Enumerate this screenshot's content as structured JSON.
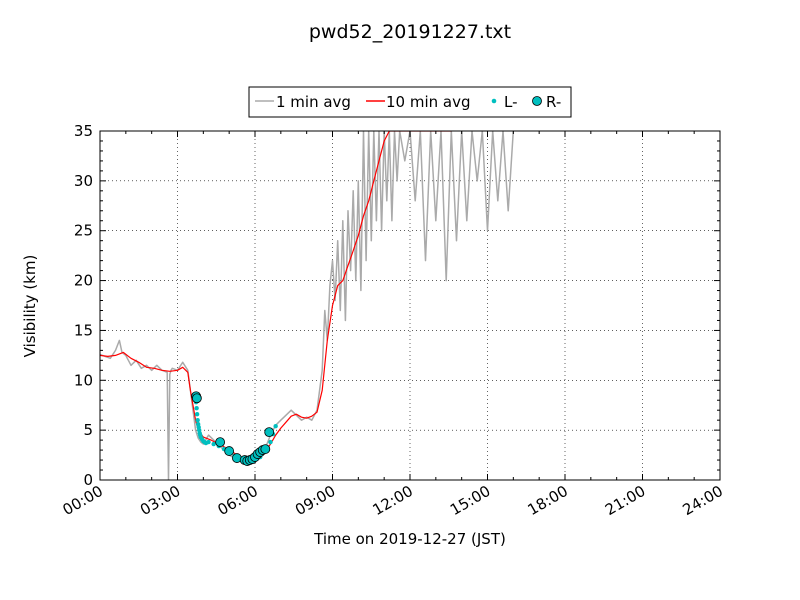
{
  "chart_data": {
    "type": "line",
    "title": "pwd52_20191227.txt",
    "xlabel": "Time on 2019-12-27 (JST)",
    "ylabel": "Visibility (km)",
    "xlim": [
      0,
      24
    ],
    "ylim": [
      0,
      35
    ],
    "x_unit": "hours (JST)",
    "x_ticks": [
      0,
      3,
      6,
      9,
      12,
      15,
      18,
      21,
      24
    ],
    "x_tick_labels": [
      "00:00",
      "03:00",
      "06:00",
      "09:00",
      "12:00",
      "15:00",
      "18:00",
      "21:00",
      "24:00"
    ],
    "y_ticks": [
      0,
      5,
      10,
      15,
      20,
      25,
      30,
      35
    ],
    "y_tick_labels": [
      "0",
      "5",
      "10",
      "15",
      "20",
      "25",
      "30",
      "35"
    ],
    "grid": true,
    "legend_position": "top-center",
    "series": [
      {
        "name": "1 min avg",
        "style": "line",
        "color": "#aaaaaa",
        "x": [
          0.0,
          0.2,
          0.4,
          0.6,
          0.75,
          0.85,
          1.0,
          1.2,
          1.4,
          1.6,
          1.8,
          2.0,
          2.2,
          2.4,
          2.6,
          2.65,
          2.7,
          2.75,
          2.8,
          3.0,
          3.2,
          3.4,
          3.5,
          3.6,
          3.7,
          3.8,
          3.9,
          4.0,
          4.2,
          4.4,
          4.6,
          4.8,
          5.0,
          5.2,
          5.4,
          5.6,
          5.8,
          6.0,
          6.2,
          6.4,
          6.6,
          6.8,
          7.0,
          7.2,
          7.4,
          7.6,
          7.8,
          8.0,
          8.2,
          8.4,
          8.6,
          8.7,
          8.8,
          8.9,
          9.0,
          9.1,
          9.2,
          9.3,
          9.4,
          9.5,
          9.6,
          9.7,
          9.8,
          9.9,
          10.0,
          10.1,
          10.2,
          10.3,
          10.4,
          10.5,
          10.6,
          10.7,
          10.8,
          10.9,
          11.0,
          11.1,
          11.2,
          11.3,
          11.4,
          11.5,
          11.6,
          11.8,
          12.0,
          12.2,
          12.4,
          12.6,
          12.8,
          13.0,
          13.2,
          13.4,
          13.6,
          13.8,
          14.0,
          14.2,
          14.4,
          14.6,
          14.8,
          15.0,
          15.2,
          15.4,
          15.6,
          15.8,
          16.0
        ],
        "y": [
          12.6,
          12.4,
          12.2,
          13.0,
          14.0,
          12.8,
          12.5,
          11.5,
          12.0,
          11.2,
          11.5,
          11.0,
          11.5,
          11.0,
          10.8,
          0.0,
          10.6,
          11.0,
          11.2,
          11.0,
          11.8,
          11.0,
          9.0,
          7.0,
          5.0,
          4.2,
          3.8,
          3.6,
          4.5,
          4.0,
          3.5,
          3.0,
          2.5,
          2.2,
          2.0,
          1.9,
          2.0,
          2.2,
          2.5,
          3.2,
          4.5,
          5.5,
          6.0,
          6.5,
          7.0,
          6.5,
          6.0,
          6.3,
          6.0,
          7.0,
          11.0,
          17.0,
          14.0,
          19.5,
          22.0,
          18.0,
          24.0,
          17.0,
          26.0,
          16.0,
          27.0,
          21.0,
          29.0,
          20.0,
          30.0,
          19.0,
          35.0,
          22.0,
          35.0,
          24.0,
          35.0,
          26.0,
          35.0,
          25.0,
          35.0,
          28.0,
          35.0,
          26.0,
          35.0,
          30.0,
          35.0,
          32.0,
          35.0,
          28.0,
          35.0,
          22.0,
          35.0,
          26.0,
          35.0,
          20.0,
          35.0,
          24.0,
          35.0,
          26.0,
          35.0,
          30.0,
          35.0,
          25.0,
          35.0,
          28.0,
          35.0,
          27.0,
          35.0
        ]
      },
      {
        "name": "10 min avg",
        "style": "line",
        "color": "#ff0000",
        "x": [
          0.0,
          0.3,
          0.6,
          0.9,
          1.2,
          1.5,
          1.8,
          2.1,
          2.4,
          2.7,
          3.0,
          3.2,
          3.4,
          3.5,
          3.6,
          3.7,
          3.8,
          4.0,
          4.3,
          4.6,
          4.9,
          5.2,
          5.5,
          5.8,
          6.0,
          6.2,
          6.4,
          6.6,
          6.8,
          7.0,
          7.2,
          7.4,
          7.6,
          7.8,
          8.0,
          8.2,
          8.4,
          8.6,
          8.8,
          9.0,
          9.2,
          9.4,
          9.6,
          9.8,
          10.0,
          10.2,
          10.4,
          10.6,
          10.8,
          11.0,
          11.2,
          11.5,
          11.8,
          12.1,
          12.4,
          12.7,
          13.0,
          13.3,
          13.6
        ],
        "y": [
          12.5,
          12.4,
          12.5,
          12.8,
          12.2,
          11.8,
          11.3,
          11.2,
          11.0,
          10.9,
          11.0,
          11.3,
          10.8,
          9.0,
          7.5,
          6.0,
          5.0,
          4.3,
          4.0,
          3.6,
          3.2,
          2.7,
          2.2,
          2.0,
          2.1,
          2.4,
          2.9,
          3.6,
          4.5,
          5.2,
          5.8,
          6.4,
          6.6,
          6.3,
          6.2,
          6.4,
          6.8,
          9.0,
          14.0,
          17.5,
          19.5,
          20.0,
          21.5,
          23.0,
          24.5,
          26.5,
          28.0,
          30.0,
          32.0,
          34.0,
          35.0,
          35.0,
          35.0,
          35.0,
          35.0,
          35.0,
          35.0,
          35.0,
          35.0
        ]
      },
      {
        "name": "L-",
        "style": "dots",
        "color": "#00bfbf",
        "x": [
          3.7,
          3.72,
          3.74,
          3.76,
          3.78,
          3.8,
          3.82,
          3.84,
          3.86,
          3.88,
          3.9,
          3.95,
          4.0,
          4.05,
          4.1,
          4.2,
          4.4,
          4.6,
          4.8,
          5.0,
          5.2,
          5.4,
          5.6,
          5.8,
          6.0,
          6.2,
          6.4,
          6.6,
          6.7,
          6.8
        ],
        "y": [
          8.3,
          7.8,
          7.2,
          6.6,
          6.0,
          5.6,
          5.3,
          5.0,
          4.7,
          4.5,
          4.3,
          4.1,
          3.9,
          3.8,
          3.7,
          3.8,
          3.6,
          3.4,
          3.1,
          2.8,
          2.4,
          2.1,
          1.9,
          1.9,
          2.0,
          2.3,
          2.9,
          3.8,
          4.6,
          5.4
        ]
      },
      {
        "name": "R-",
        "style": "markers",
        "color": "#00bfbf",
        "x": [
          3.72,
          3.75,
          4.65,
          5.0,
          5.3,
          5.6,
          5.7,
          5.8,
          5.9,
          6.0,
          6.1,
          6.2,
          6.3,
          6.4,
          6.55
        ],
        "y": [
          8.4,
          8.2,
          3.8,
          2.9,
          2.2,
          2.0,
          1.9,
          2.0,
          2.1,
          2.3,
          2.6,
          2.8,
          3.0,
          3.1,
          4.8
        ]
      }
    ]
  }
}
